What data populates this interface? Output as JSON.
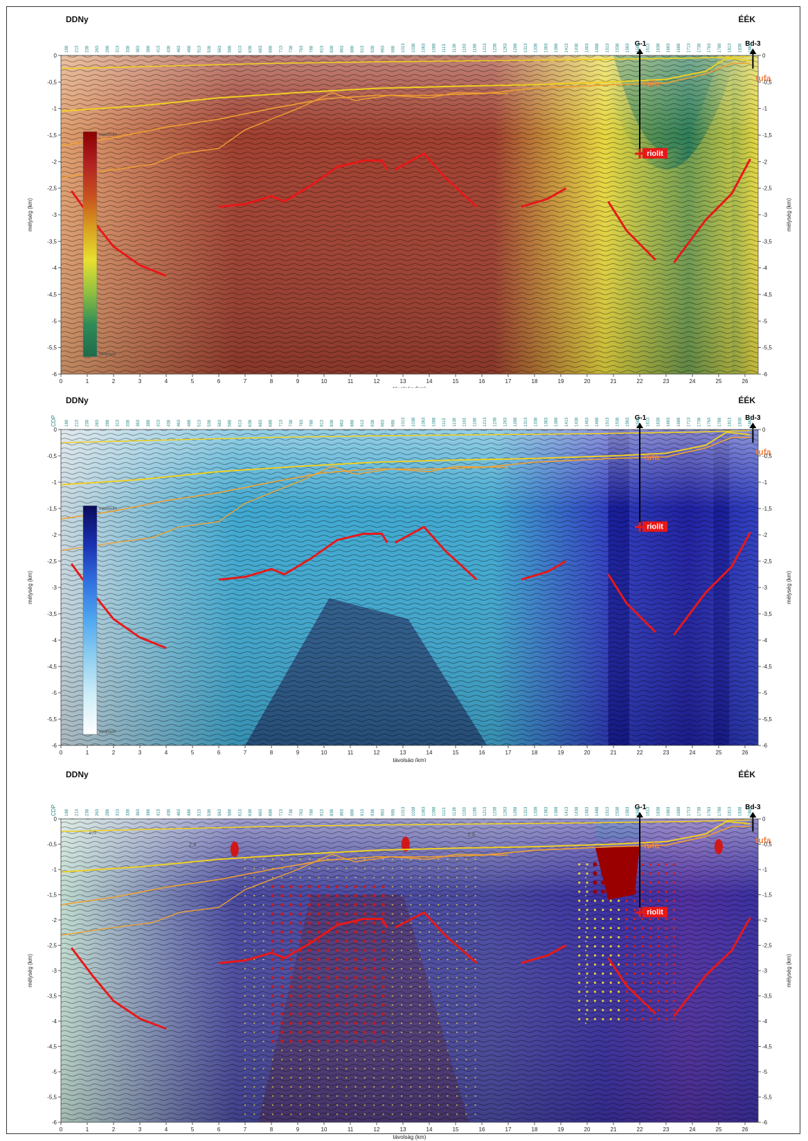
{
  "sections": [
    {
      "id": "top",
      "left_label": "DDNy",
      "right_label": "ÉÉK",
      "cdp_label": "",
      "xlabel": "távolság (km)",
      "ylabel_left": "mélység (km)",
      "ylabel_right": "mélység (km)",
      "legend_max": "maximum",
      "legend_min": "minimum",
      "legend_colors": [
        "#8b0000",
        "#b22222",
        "#c8501e",
        "#d8a020",
        "#e8e030",
        "#90c040",
        "#2e8b57",
        "#1e6b4a"
      ],
      "background_left": "#e0a070",
      "background_mid": "#a04030",
      "background_right": "#e8d840",
      "background_far": "#2e7d5a",
      "well_g1": "G-1",
      "well_bd3": "Bd-3",
      "tufa_labels": [
        "tufa",
        "tufa"
      ],
      "riolit_label": "riolit"
    },
    {
      "id": "middle",
      "left_label": "DDNy",
      "right_label": "ÉÉK",
      "cdp_label": "CDP",
      "xlabel": "távolság (km)",
      "ylabel_left": "mélység (km)",
      "ylabel_right": "mélység (km)",
      "legend_max": "maximum",
      "legend_min": "minimum",
      "legend_colors": [
        "#0a0a5a",
        "#1a30b0",
        "#3070e0",
        "#50a8f0",
        "#90d0f0",
        "#d0eef8",
        "#ffffff"
      ],
      "background_left": "#c8d8e0",
      "background_mid": "#40a8d0",
      "background_right": "#3040c0",
      "background_far": "#2020a0",
      "well_g1": "G-1",
      "well_bd3": "Bd-3",
      "tufa_labels": [
        "tufa",
        "tufa"
      ],
      "riolit_label": "riolit"
    },
    {
      "id": "bottom",
      "left_label": "DDNy",
      "right_label": "ÉÉK",
      "cdp_label": "CDP",
      "xlabel": "távolság (km)",
      "ylabel_left": "mélység (km)",
      "ylabel_right": "mélység (km)",
      "legend_max": "",
      "legend_min": "",
      "legend_colors": [],
      "background_left": "#c0dcd0",
      "background_mid": "#4a4aa0",
      "background_right": "#3a30a0",
      "background_far": "#5030a0",
      "well_g1": "G-1",
      "well_bd3": "Bd-3",
      "tufa_labels": [
        "tufa",
        "tufa"
      ],
      "riolit_label": "riolit",
      "contour_labels": [
        "2,6",
        "2,6",
        "2,6"
      ]
    }
  ],
  "x_ticks": [
    "0",
    "1",
    "2",
    "3",
    "4",
    "5",
    "6",
    "7",
    "8",
    "9",
    "10",
    "11",
    "12",
    "13",
    "14",
    "15",
    "16",
    "17",
    "18",
    "19",
    "20",
    "21",
    "22",
    "23",
    "24",
    "25",
    "26"
  ],
  "y_ticks": [
    "0",
    "-0,5",
    "-1",
    "-1,5",
    "-2",
    "-2,5",
    "-3",
    "-3,5",
    "-4",
    "-4,5",
    "-5",
    "-5,5",
    "-6"
  ],
  "cdp_ticks": [
    "188",
    "213",
    "238",
    "263",
    "288",
    "313",
    "338",
    "363",
    "388",
    "413",
    "438",
    "463",
    "488",
    "513",
    "538",
    "563",
    "588",
    "613",
    "638",
    "663",
    "688",
    "713",
    "738",
    "763",
    "788",
    "813",
    "838",
    "863",
    "888",
    "913",
    "938",
    "963",
    "988",
    "1013",
    "1038",
    "1063",
    "1088",
    "1113",
    "1138",
    "1163",
    "1188",
    "1213",
    "1238",
    "1263",
    "1288",
    "1313",
    "1338",
    "1363",
    "1388",
    "1413",
    "1438",
    "1463",
    "1488",
    "1513",
    "1538",
    "1563",
    "1588",
    "1613",
    "1638",
    "1663",
    "1688",
    "1713",
    "1738",
    "1763",
    "1788",
    "1813",
    "1838",
    "1863"
  ],
  "horizon_colors": {
    "fault": "#e81818",
    "horizon_yellow": "#f0d020",
    "horizon_orange": "#f0a030",
    "well": "#000000",
    "tufa_text": "#f08040",
    "riolit_bg": "#e81818"
  }
}
